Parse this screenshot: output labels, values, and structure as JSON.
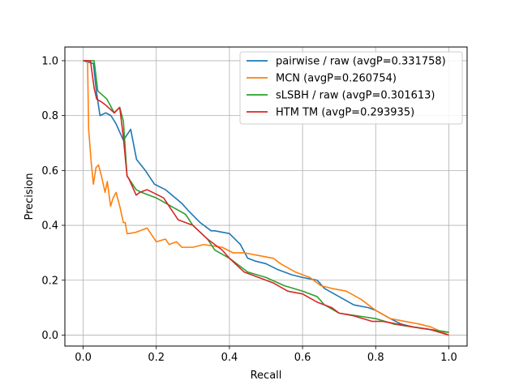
{
  "chart_data": {
    "type": "line",
    "title": "",
    "xlabel": "Recall",
    "ylabel": "Precision",
    "xlim": [
      -0.05,
      1.05
    ],
    "ylim": [
      -0.04,
      1.05
    ],
    "xticks": [
      0.0,
      0.2,
      0.4,
      0.6,
      0.8,
      1.0
    ],
    "xtick_labels": [
      "0.0",
      "0.2",
      "0.4",
      "0.6",
      "0.8",
      "1.0"
    ],
    "yticks": [
      0.0,
      0.2,
      0.4,
      0.6,
      0.8,
      1.0
    ],
    "ytick_labels": [
      "0.0",
      "0.2",
      "0.4",
      "0.6",
      "0.8",
      "1.0"
    ],
    "grid": true,
    "legend_position": "top-right",
    "series": [
      {
        "name": "pairwise / raw (avgP=0.331758)",
        "color": "#1f77b4",
        "x": [
          0.0,
          0.028,
          0.036,
          0.046,
          0.062,
          0.076,
          0.09,
          0.11,
          0.13,
          0.146,
          0.17,
          0.195,
          0.225,
          0.27,
          0.29,
          0.32,
          0.35,
          0.36,
          0.4,
          0.43,
          0.45,
          0.47,
          0.5,
          0.53,
          0.57,
          0.6,
          0.64,
          0.66,
          0.7,
          0.74,
          0.78,
          0.8,
          0.84,
          0.87,
          0.9,
          0.95,
          1.0
        ],
        "y": [
          1.0,
          0.99,
          0.89,
          0.8,
          0.81,
          0.8,
          0.77,
          0.71,
          0.75,
          0.64,
          0.6,
          0.55,
          0.53,
          0.48,
          0.45,
          0.41,
          0.38,
          0.38,
          0.37,
          0.33,
          0.28,
          0.27,
          0.26,
          0.24,
          0.22,
          0.21,
          0.2,
          0.17,
          0.14,
          0.11,
          0.1,
          0.09,
          0.06,
          0.04,
          0.03,
          0.02,
          0.01
        ]
      },
      {
        "name": "MCN (avgP=0.260754)",
        "color": "#ff7f0e",
        "x": [
          0.0,
          0.012,
          0.015,
          0.022,
          0.028,
          0.035,
          0.042,
          0.05,
          0.06,
          0.066,
          0.075,
          0.082,
          0.09,
          0.1,
          0.11,
          0.115,
          0.12,
          0.125,
          0.145,
          0.175,
          0.2,
          0.225,
          0.235,
          0.255,
          0.27,
          0.3,
          0.33,
          0.38,
          0.41,
          0.44,
          0.48,
          0.52,
          0.54,
          0.58,
          0.62,
          0.65,
          0.68,
          0.72,
          0.76,
          0.8,
          0.84,
          0.88,
          0.92,
          0.95,
          1.0
        ],
        "y": [
          1.0,
          1.0,
          0.75,
          0.63,
          0.55,
          0.61,
          0.62,
          0.58,
          0.52,
          0.56,
          0.47,
          0.5,
          0.52,
          0.47,
          0.41,
          0.41,
          0.37,
          0.37,
          0.375,
          0.39,
          0.34,
          0.35,
          0.33,
          0.34,
          0.32,
          0.32,
          0.33,
          0.32,
          0.3,
          0.3,
          0.29,
          0.28,
          0.26,
          0.23,
          0.21,
          0.18,
          0.17,
          0.16,
          0.13,
          0.09,
          0.06,
          0.05,
          0.04,
          0.03,
          0.0
        ]
      },
      {
        "name": "sLSBH / raw (avgP=0.301613)",
        "color": "#2ca02c",
        "x": [
          0.0,
          0.03,
          0.04,
          0.065,
          0.085,
          0.1,
          0.11,
          0.12,
          0.13,
          0.145,
          0.16,
          0.2,
          0.24,
          0.28,
          0.3,
          0.34,
          0.36,
          0.4,
          0.45,
          0.5,
          0.55,
          0.6,
          0.64,
          0.66,
          0.7,
          0.75,
          0.8,
          0.85,
          0.9,
          0.95,
          1.0
        ],
        "y": [
          1.0,
          1.0,
          0.89,
          0.86,
          0.81,
          0.83,
          0.78,
          0.58,
          0.56,
          0.53,
          0.52,
          0.5,
          0.47,
          0.44,
          0.4,
          0.35,
          0.31,
          0.28,
          0.23,
          0.21,
          0.18,
          0.16,
          0.14,
          0.11,
          0.08,
          0.07,
          0.06,
          0.04,
          0.03,
          0.02,
          0.01
        ]
      },
      {
        "name": "HTM TM (avgP=0.293935)",
        "color": "#d62728",
        "x": [
          0.0,
          0.02,
          0.03,
          0.037,
          0.05,
          0.06,
          0.085,
          0.1,
          0.11,
          0.12,
          0.125,
          0.145,
          0.155,
          0.175,
          0.19,
          0.22,
          0.26,
          0.3,
          0.34,
          0.38,
          0.4,
          0.44,
          0.48,
          0.52,
          0.56,
          0.6,
          0.64,
          0.68,
          0.7,
          0.74,
          0.79,
          0.82,
          0.86,
          0.9,
          0.95,
          1.0
        ],
        "y": [
          1.0,
          1.0,
          0.9,
          0.86,
          0.85,
          0.84,
          0.81,
          0.83,
          0.72,
          0.58,
          0.57,
          0.51,
          0.52,
          0.53,
          0.52,
          0.5,
          0.42,
          0.4,
          0.35,
          0.31,
          0.28,
          0.23,
          0.21,
          0.19,
          0.16,
          0.15,
          0.12,
          0.1,
          0.08,
          0.07,
          0.05,
          0.05,
          0.04,
          0.03,
          0.02,
          0.0
        ]
      }
    ]
  }
}
